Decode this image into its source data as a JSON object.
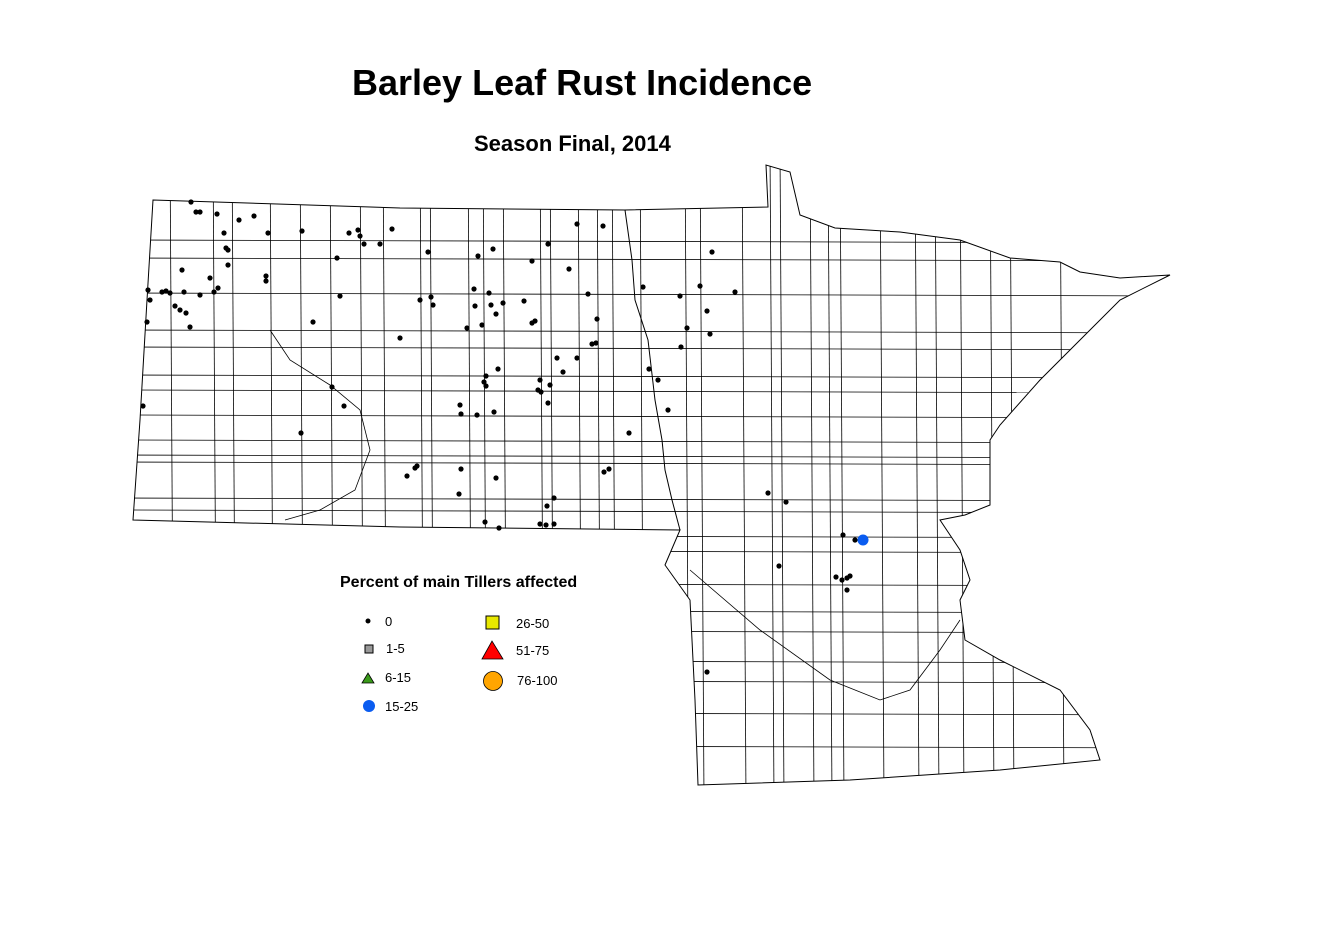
{
  "map": {
    "title": "Barley Leaf Rust Incidence",
    "subtitle": "Season Final, 2014"
  },
  "legend": {
    "title": "Percent of main Tillers affected",
    "items": [
      {
        "label": "0",
        "symbol": "small-dot",
        "color": "#000000"
      },
      {
        "label": "1-5",
        "symbol": "square",
        "color": "#999999"
      },
      {
        "label": "6-15",
        "symbol": "triangle",
        "color": "#3a9a1a"
      },
      {
        "label": "15-25",
        "symbol": "circle",
        "color": "#0a5cf0"
      },
      {
        "label": "26-50",
        "symbol": "square",
        "color": "#e8e800"
      },
      {
        "label": "51-75",
        "symbol": "triangle",
        "color": "#ff0000"
      },
      {
        "label": "76-100",
        "symbol": "circle",
        "color": "#ffa500"
      }
    ]
  }
}
